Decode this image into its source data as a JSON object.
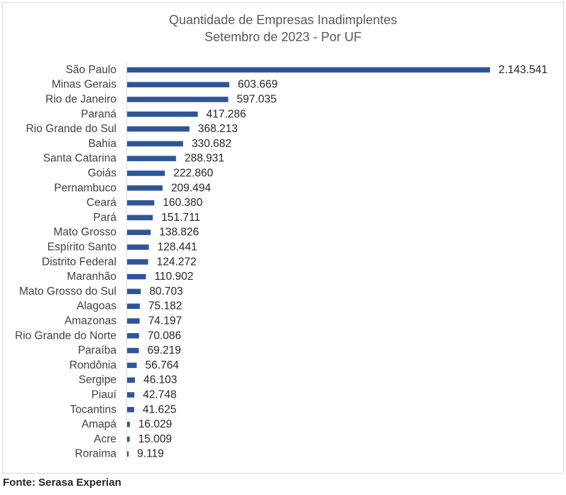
{
  "chart_data": {
    "type": "bar",
    "orientation": "horizontal",
    "title": "Quantidade de Empresas Inadimplentes",
    "subtitle": "Setembro de 2023 - Por UF",
    "categories": [
      "São Paulo",
      "Minas Gerais",
      "Rio de Janeiro",
      "Paraná",
      "Rio Grande do Sul",
      "Bahia",
      "Santa Catarina",
      "Goiás",
      "Pernambuco",
      "Ceará",
      "Pará",
      "Mato Grosso",
      "Espírito Santo",
      "Distrito Federal",
      "Maranhão",
      "Mato Grosso do Sul",
      "Alagoas",
      "Amazonas",
      "Rio Grande do Norte",
      "Paraíba",
      "Rondônia",
      "Sergipe",
      "Piauí",
      "Tocantins",
      "Amapá",
      "Acre",
      "Roraima"
    ],
    "values": [
      2143541,
      603669,
      597035,
      417286,
      368213,
      330682,
      288931,
      222860,
      209494,
      160380,
      151711,
      138826,
      128441,
      124272,
      110902,
      80703,
      75182,
      74197,
      70086,
      69219,
      56764,
      46103,
      42748,
      41625,
      16029,
      15009,
      9119
    ],
    "value_labels": [
      "2.143.541",
      "603.669",
      "597.035",
      "417.286",
      "368.213",
      "330.682",
      "288.931",
      "222.860",
      "209.494",
      "160.380",
      "151.711",
      "138.826",
      "128.441",
      "124.272",
      "110.902",
      "80.703",
      "75.182",
      "74.197",
      "70.086",
      "69.219",
      "56.764",
      "46.103",
      "42.748",
      "41.625",
      "16.029",
      "15.009",
      "9.119"
    ],
    "xlabel": "",
    "ylabel": "",
    "xlim": [
      0,
      2143541
    ],
    "grid": false,
    "legend": "none",
    "bar_color": "#2f5597"
  },
  "source": "Fonte: Serasa Experian"
}
